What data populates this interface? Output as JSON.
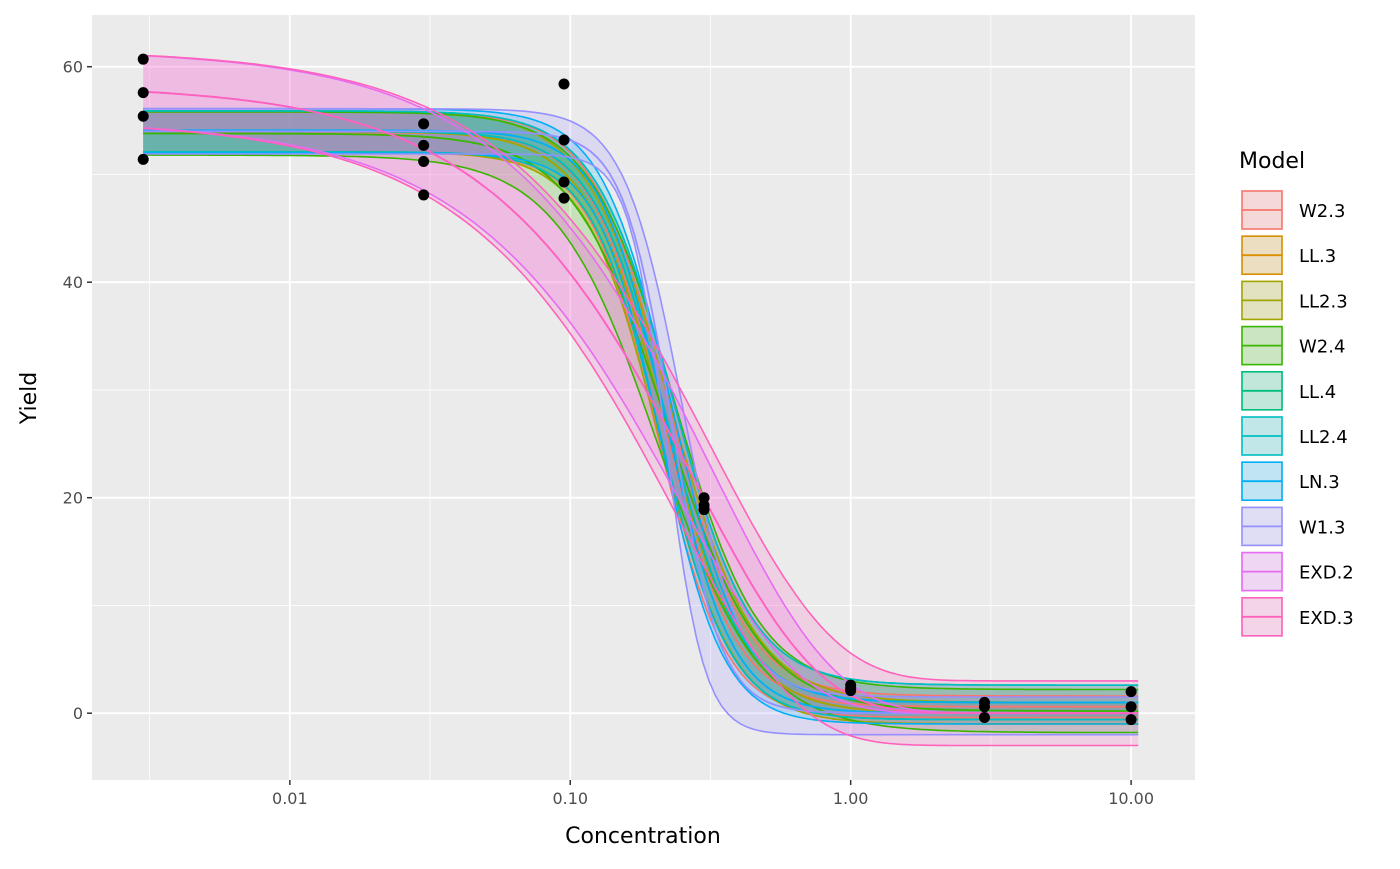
{
  "chart_data": {
    "type": "line",
    "xlabel": "Concentration",
    "ylabel": "Yield",
    "x_scale": "log10",
    "xlim": [
      0.00197,
      16.9
    ],
    "ylim": [
      -6.2,
      64.8
    ],
    "x_ticks": [
      0.01,
      0.1,
      1,
      10
    ],
    "x_tick_labels": [
      "0.01",
      "0.10",
      "1.00",
      "10.00"
    ],
    "y_ticks": [
      0,
      20,
      40,
      60
    ],
    "y_tick_labels": [
      "0",
      "20",
      "40",
      "60"
    ],
    "grid": true,
    "legend": {
      "title": "Model",
      "placement": "right"
    },
    "points": [
      {
        "x": 0.003,
        "y": 60.7
      },
      {
        "x": 0.003,
        "y": 57.6
      },
      {
        "x": 0.003,
        "y": 55.4
      },
      {
        "x": 0.003,
        "y": 51.4
      },
      {
        "x": 0.03,
        "y": 54.7
      },
      {
        "x": 0.03,
        "y": 52.7
      },
      {
        "x": 0.03,
        "y": 51.2
      },
      {
        "x": 0.03,
        "y": 48.1
      },
      {
        "x": 0.095,
        "y": 58.4
      },
      {
        "x": 0.095,
        "y": 53.2
      },
      {
        "x": 0.095,
        "y": 49.3
      },
      {
        "x": 0.095,
        "y": 47.8
      },
      {
        "x": 0.3,
        "y": 20.0
      },
      {
        "x": 0.3,
        "y": 19.3
      },
      {
        "x": 0.3,
        "y": 18.9
      },
      {
        "x": 1.0,
        "y": 2.6
      },
      {
        "x": 1.0,
        "y": 2.3
      },
      {
        "x": 1.0,
        "y": 2.1
      },
      {
        "x": 3.0,
        "y": 1.0
      },
      {
        "x": 3.0,
        "y": 0.6
      },
      {
        "x": 3.0,
        "y": -0.4
      },
      {
        "x": 10.0,
        "y": 2.0
      },
      {
        "x": 10.0,
        "y": 0.6
      },
      {
        "x": 10.0,
        "y": -0.6
      }
    ],
    "series": [
      {
        "name": "W2.3",
        "color": "#F8766D",
        "form": "log-logistic",
        "fit": {
          "b": 3.4,
          "c": 0.6,
          "d": 53.9,
          "e": 0.215
        },
        "lower": {
          "b": 3.6,
          "c": -0.4,
          "d": 52.0,
          "e": 0.205
        },
        "upper": {
          "b": 3.2,
          "c": 1.6,
          "d": 55.8,
          "e": 0.225
        }
      },
      {
        "name": "LL.3",
        "color": "#D89000",
        "form": "log-logistic",
        "fit": {
          "b": 3.1,
          "c": 0.0,
          "d": 54.0,
          "e": 0.218
        },
        "lower": {
          "b": 3.3,
          "c": -1.0,
          "d": 52.1,
          "e": 0.208
        },
        "upper": {
          "b": 2.9,
          "c": 1.0,
          "d": 55.9,
          "e": 0.228
        }
      },
      {
        "name": "LL2.3",
        "color": "#A3A500",
        "form": "log-logistic",
        "fit": {
          "b": 3.1,
          "c": 0.0,
          "d": 54.0,
          "e": 0.218
        },
        "lower": {
          "b": 3.3,
          "c": -1.0,
          "d": 52.1,
          "e": 0.208
        },
        "upper": {
          "b": 2.9,
          "c": 1.0,
          "d": 55.9,
          "e": 0.228
        }
      },
      {
        "name": "W2.4",
        "color": "#39B600",
        "form": "log-logistic",
        "fit": {
          "b": 2.6,
          "c": 0.2,
          "d": 53.8,
          "e": 0.22
        },
        "lower": {
          "b": 2.4,
          "c": -1.8,
          "d": 51.8,
          "e": 0.205
        },
        "upper": {
          "b": 2.9,
          "c": 2.2,
          "d": 55.8,
          "e": 0.235
        }
      },
      {
        "name": "LL.4",
        "color": "#00BF7D",
        "form": "log-logistic",
        "fit": {
          "b": 3.3,
          "c": 1.0,
          "d": 54.0,
          "e": 0.22
        },
        "lower": {
          "b": 3.5,
          "c": -0.6,
          "d": 52.1,
          "e": 0.21
        },
        "upper": {
          "b": 3.1,
          "c": 2.6,
          "d": 55.9,
          "e": 0.232
        }
      },
      {
        "name": "LL2.4",
        "color": "#00BFC4",
        "form": "log-logistic",
        "fit": {
          "b": 3.3,
          "c": 1.0,
          "d": 54.0,
          "e": 0.22
        },
        "lower": {
          "b": 3.5,
          "c": -0.6,
          "d": 52.1,
          "e": 0.21
        },
        "upper": {
          "b": 3.1,
          "c": 2.6,
          "d": 55.9,
          "e": 0.232
        }
      },
      {
        "name": "LN.3",
        "color": "#00B0F6",
        "form": "log-logistic",
        "fit": {
          "b": 3.7,
          "c": 0.0,
          "d": 54.1,
          "e": 0.22
        },
        "lower": {
          "b": 3.9,
          "c": -1.0,
          "d": 52.0,
          "e": 0.21
        },
        "upper": {
          "b": 3.5,
          "c": 1.0,
          "d": 56.1,
          "e": 0.23
        }
      },
      {
        "name": "W1.3",
        "color": "#9590FF",
        "form": "log-logistic",
        "fit": {
          "b": 5.0,
          "c": 0.0,
          "d": 54.0,
          "e": 0.23
        },
        "lower": {
          "b": 6.5,
          "c": -2.0,
          "d": 51.9,
          "e": 0.22
        },
        "upper": {
          "b": 4.2,
          "c": 1.5,
          "d": 56.1,
          "e": 0.25
        }
      },
      {
        "name": "EXD.2",
        "color": "#E76BF3",
        "form": "exponential-decay",
        "fit": {
          "c": 0.0,
          "d": 58.3,
          "e": 0.28
        },
        "lower": {
          "c": 0.0,
          "d": 55.0,
          "e": 0.24
        },
        "upper": {
          "c": 0.0,
          "d": 61.6,
          "e": 0.32
        }
      },
      {
        "name": "EXD.3",
        "color": "#FF62BC",
        "form": "exponential-decay",
        "fit": {
          "c": 0.0,
          "d": 58.3,
          "e": 0.28
        },
        "lower": {
          "c": -3.0,
          "d": 55.0,
          "e": 0.24
        },
        "upper": {
          "c": 3.0,
          "d": 61.6,
          "e": 0.32
        }
      }
    ]
  }
}
